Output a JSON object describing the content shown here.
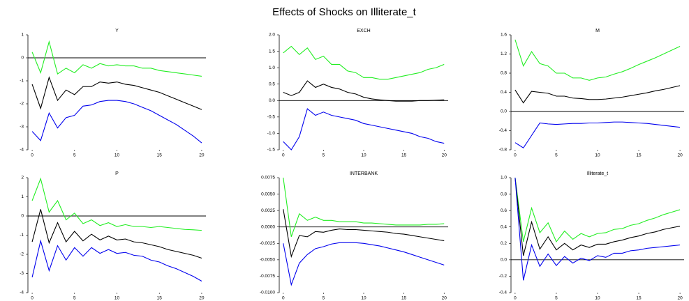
{
  "title": "Effects of Shocks on Illiterate_t",
  "chart_data": [
    {
      "type": "line",
      "title": "Y",
      "x": [
        0,
        1,
        2,
        3,
        4,
        5,
        6,
        7,
        8,
        9,
        10,
        11,
        12,
        13,
        14,
        15,
        16,
        17,
        18,
        19,
        20
      ],
      "xlim": [
        -0.5,
        20.5
      ],
      "xticks": [
        0,
        5,
        10,
        15,
        20
      ],
      "ylim": [
        -4,
        1
      ],
      "yticks": [
        -4,
        -3,
        -2,
        -1,
        0,
        1
      ],
      "series": [
        {
          "color": "#22ee22",
          "values": [
            0.25,
            -0.65,
            0.7,
            -0.7,
            -0.45,
            -0.65,
            -0.3,
            -0.45,
            -0.25,
            -0.35,
            -0.3,
            -0.35,
            -0.35,
            -0.45,
            -0.45,
            -0.55,
            -0.6,
            -0.65,
            -0.7,
            -0.75,
            -0.8
          ]
        },
        {
          "color": "#000000",
          "values": [
            -1.15,
            -2.2,
            -0.85,
            -1.85,
            -1.4,
            -1.6,
            -1.25,
            -1.25,
            -1.05,
            -1.1,
            -1.05,
            -1.15,
            -1.2,
            -1.3,
            -1.4,
            -1.5,
            -1.65,
            -1.8,
            -1.95,
            -2.1,
            -2.25
          ]
        },
        {
          "color": "#0000ee",
          "values": [
            -3.2,
            -3.6,
            -2.4,
            -3.05,
            -2.6,
            -2.5,
            -2.1,
            -2.05,
            -1.9,
            -1.85,
            -1.85,
            -1.9,
            -2.0,
            -2.15,
            -2.3,
            -2.5,
            -2.7,
            -2.9,
            -3.15,
            -3.4,
            -3.7
          ]
        }
      ]
    },
    {
      "type": "line",
      "title": "EXCH",
      "x": [
        0,
        1,
        2,
        3,
        4,
        5,
        6,
        7,
        8,
        9,
        10,
        11,
        12,
        13,
        14,
        15,
        16,
        17,
        18,
        19,
        20
      ],
      "xlim": [
        -0.5,
        20.5
      ],
      "xticks": [
        0,
        5,
        10,
        15,
        20
      ],
      "ylim": [
        -1.5,
        2.0
      ],
      "yticks": [
        -1.5,
        {
          "value": -1,
          "label": "-1.0"
        },
        -0.5,
        {
          "value": 0,
          "label": "0.0"
        },
        0.5,
        {
          "value": 1,
          "label": "1.0"
        },
        1.5,
        {
          "value": 2,
          "label": "2.0"
        }
      ],
      "series": [
        {
          "color": "#22ee22",
          "values": [
            1.45,
            1.65,
            1.4,
            1.6,
            1.25,
            1.35,
            1.1,
            1.1,
            0.9,
            0.85,
            0.7,
            0.7,
            0.65,
            0.65,
            0.7,
            0.75,
            0.8,
            0.85,
            0.95,
            1.0,
            1.1
          ]
        },
        {
          "color": "#000000",
          "values": [
            0.25,
            0.15,
            0.25,
            0.6,
            0.4,
            0.5,
            0.4,
            0.35,
            0.25,
            0.2,
            0.1,
            0.05,
            0.02,
            0,
            -0.02,
            -0.02,
            -0.02,
            0,
            0,
            0.01,
            0.02
          ]
        },
        {
          "color": "#0000ee",
          "values": [
            -1.25,
            -1.5,
            -1.1,
            -0.25,
            -0.45,
            -0.35,
            -0.45,
            -0.5,
            -0.55,
            -0.6,
            -0.7,
            -0.75,
            -0.8,
            -0.85,
            -0.9,
            -0.95,
            -1.0,
            -1.1,
            -1.15,
            -1.25,
            -1.3
          ]
        }
      ]
    },
    {
      "type": "line",
      "title": "M",
      "x": [
        0,
        1,
        2,
        3,
        4,
        5,
        6,
        7,
        8,
        9,
        10,
        11,
        12,
        13,
        14,
        15,
        16,
        17,
        18,
        19,
        20
      ],
      "xlim": [
        -0.5,
        20.5
      ],
      "xticks": [
        0,
        5,
        10,
        15,
        20
      ],
      "ylim": [
        -0.8,
        1.6
      ],
      "yticks": [
        -0.8,
        -0.4,
        {
          "value": 0,
          "label": "0.0"
        },
        0.4,
        0.8,
        1.2,
        1.6
      ],
      "series": [
        {
          "color": "#22ee22",
          "values": [
            1.5,
            0.95,
            1.25,
            1.0,
            0.95,
            0.8,
            0.8,
            0.7,
            0.7,
            0.65,
            0.7,
            0.72,
            0.78,
            0.83,
            0.9,
            0.98,
            1.05,
            1.12,
            1.2,
            1.28,
            1.36
          ]
        },
        {
          "color": "#000000",
          "values": [
            0.45,
            0.18,
            0.42,
            0.4,
            0.38,
            0.32,
            0.32,
            0.28,
            0.27,
            0.25,
            0.25,
            0.26,
            0.28,
            0.3,
            0.33,
            0.36,
            0.39,
            0.43,
            0.46,
            0.5,
            0.54
          ]
        },
        {
          "color": "#0000ee",
          "values": [
            -0.65,
            -0.76,
            -0.5,
            -0.24,
            -0.26,
            -0.27,
            -0.26,
            -0.25,
            -0.25,
            -0.24,
            -0.24,
            -0.23,
            -0.22,
            -0.22,
            -0.23,
            -0.24,
            -0.25,
            -0.27,
            -0.29,
            -0.31,
            -0.33
          ]
        }
      ]
    },
    {
      "type": "line",
      "title": "P",
      "x": [
        0,
        1,
        2,
        3,
        4,
        5,
        6,
        7,
        8,
        9,
        10,
        11,
        12,
        13,
        14,
        15,
        16,
        17,
        18,
        19,
        20
      ],
      "xlim": [
        -0.5,
        20.5
      ],
      "xticks": [
        0,
        5,
        10,
        15,
        20
      ],
      "ylim": [
        -4,
        2
      ],
      "yticks": [
        -4,
        -3,
        -2,
        -1,
        0,
        1,
        2
      ],
      "series": [
        {
          "color": "#22ee22",
          "values": [
            0.8,
            1.95,
            0.2,
            0.8,
            -0.2,
            0.15,
            -0.4,
            -0.2,
            -0.5,
            -0.35,
            -0.55,
            -0.45,
            -0.55,
            -0.55,
            -0.6,
            -0.55,
            -0.6,
            -0.65,
            -0.7,
            -0.72,
            -0.75
          ]
        },
        {
          "color": "#000000",
          "values": [
            -1.35,
            0.35,
            -1.4,
            -0.35,
            -1.35,
            -0.8,
            -1.3,
            -0.95,
            -1.25,
            -1.05,
            -1.25,
            -1.2,
            -1.35,
            -1.4,
            -1.5,
            -1.6,
            -1.75,
            -1.85,
            -1.95,
            -2.05,
            -2.2
          ]
        },
        {
          "color": "#0000ee",
          "values": [
            -3.2,
            -1.3,
            -2.85,
            -1.55,
            -2.3,
            -1.65,
            -2.1,
            -1.65,
            -1.95,
            -1.75,
            -1.95,
            -1.9,
            -2.05,
            -2.1,
            -2.3,
            -2.4,
            -2.6,
            -2.75,
            -2.95,
            -3.15,
            -3.4
          ]
        }
      ]
    },
    {
      "type": "line",
      "title": "INTERBANK",
      "x": [
        0,
        1,
        2,
        3,
        4,
        5,
        6,
        7,
        8,
        9,
        10,
        11,
        12,
        13,
        14,
        15,
        16,
        17,
        18,
        19,
        20
      ],
      "xlim": [
        -0.5,
        20.5
      ],
      "xticks": [
        0,
        5,
        10,
        15,
        20
      ],
      "ylim": [
        -0.01,
        0.0075
      ],
      "yticks": [
        {
          "value": -0.01,
          "label": "-0.0100"
        },
        -0.0075,
        {
          "value": -0.005,
          "label": "-0.0050"
        },
        -0.0025,
        {
          "value": 0,
          "label": "0.0000"
        },
        0.0025,
        {
          "value": 0.005,
          "label": "0.0050"
        },
        0.0075
      ],
      "series": [
        {
          "color": "#22ee22",
          "values": [
            0.0075,
            -0.0015,
            0.002,
            0.001,
            0.0015,
            0.001,
            0.001,
            0.0008,
            0.0008,
            0.0008,
            0.0006,
            0.0006,
            0.0005,
            0.0004,
            0.0003,
            0.0003,
            0.0003,
            0.0003,
            0.0004,
            0.0004,
            0.0005
          ]
        },
        {
          "color": "#000000",
          "values": [
            0.0027,
            -0.0045,
            -0.0013,
            -0.0015,
            -0.0007,
            -0.0008,
            -0.0005,
            -0.0003,
            -0.0004,
            -0.0004,
            -0.0005,
            -0.0006,
            -0.0007,
            -0.0008,
            -0.001,
            -0.0011,
            -0.0013,
            -0.0015,
            -0.0017,
            -0.0019,
            -0.0021
          ]
        },
        {
          "color": "#0000ee",
          "values": [
            -0.0025,
            -0.0088,
            -0.0055,
            -0.0042,
            -0.0033,
            -0.003,
            -0.0026,
            -0.0024,
            -0.0024,
            -0.0024,
            -0.0025,
            -0.0027,
            -0.0029,
            -0.0032,
            -0.0035,
            -0.0038,
            -0.0042,
            -0.0046,
            -0.005,
            -0.0054,
            -0.0058
          ]
        }
      ]
    },
    {
      "type": "line",
      "title": "Illiterate_t",
      "x": [
        0,
        1,
        2,
        3,
        4,
        5,
        6,
        7,
        8,
        9,
        10,
        11,
        12,
        13,
        14,
        15,
        16,
        17,
        18,
        19,
        20
      ],
      "xlim": [
        -0.5,
        20.5
      ],
      "xticks": [
        0,
        5,
        10,
        15,
        20
      ],
      "ylim": [
        -0.4,
        1.0
      ],
      "yticks": [
        -0.4,
        -0.2,
        {
          "value": 0,
          "label": "0.0"
        },
        0.2,
        0.4,
        0.6,
        0.8,
        {
          "value": 1,
          "label": "1.0"
        }
      ],
      "series": [
        {
          "color": "#22ee22",
          "values": [
            1.0,
            0.22,
            0.63,
            0.33,
            0.45,
            0.22,
            0.35,
            0.25,
            0.32,
            0.28,
            0.32,
            0.33,
            0.37,
            0.38,
            0.42,
            0.44,
            0.48,
            0.51,
            0.55,
            0.58,
            0.61
          ]
        },
        {
          "color": "#000000",
          "values": [
            1.0,
            0.05,
            0.46,
            0.13,
            0.28,
            0.12,
            0.2,
            0.12,
            0.18,
            0.15,
            0.19,
            0.19,
            0.22,
            0.24,
            0.27,
            0.29,
            0.32,
            0.34,
            0.37,
            0.39,
            0.41
          ]
        },
        {
          "color": "#0000ee",
          "values": [
            1.0,
            -0.25,
            0.18,
            -0.08,
            0.07,
            -0.07,
            0.04,
            -0.04,
            0.02,
            -0.01,
            0.05,
            0.03,
            0.08,
            0.08,
            0.11,
            0.12,
            0.14,
            0.15,
            0.16,
            0.17,
            0.18
          ]
        }
      ]
    }
  ]
}
